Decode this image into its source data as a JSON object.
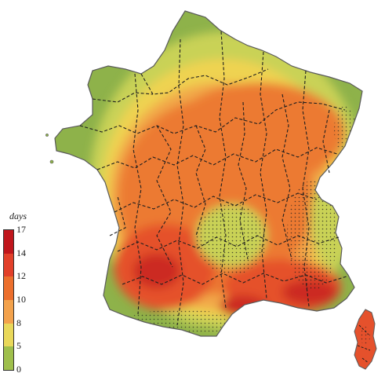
{
  "legend": {
    "title": "days",
    "ticks": [
      "17",
      "14",
      "12",
      "10",
      "8",
      "5",
      "0"
    ],
    "colors": [
      "#c0161c",
      "#e2402a",
      "#ec6f2d",
      "#f3a24c",
      "#e9d85a",
      "#9fbf4c"
    ]
  },
  "palette": {
    "green": "#8eb24a",
    "yellow_green": "#c9d257",
    "yellow": "#efd351",
    "light_orange": "#f2a94a",
    "orange": "#ec7a33",
    "red_orange": "#e5512c",
    "red": "#cc2a22",
    "boundary": "#1f1f1f",
    "stipple": "#2a2a2a"
  }
}
